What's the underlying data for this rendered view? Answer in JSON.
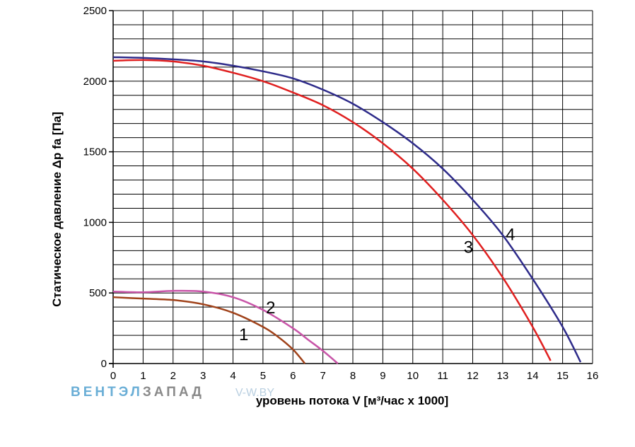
{
  "logo": {
    "part1": "ВЕНТЭЛ",
    "part2": "ЗАПАД",
    "part3": "V-W.BY"
  },
  "chart_data": {
    "type": "line",
    "xlabel": "уровень потока  V [м³/час x 1000]",
    "ylabel": "Статическое давление  Δp fa [Па]",
    "xlim": [
      0,
      16
    ],
    "ylim": [
      0,
      2500
    ],
    "x_ticks": [
      0,
      1,
      2,
      3,
      4,
      5,
      6,
      7,
      8,
      9,
      10,
      11,
      12,
      13,
      14,
      15,
      16
    ],
    "y_ticks": [
      0,
      500,
      1000,
      1500,
      2000,
      2500
    ],
    "grid": true,
    "series": [
      {
        "name": "1",
        "color": "#a0421a",
        "x": [
          0,
          1,
          2,
          3,
          4,
          5,
          5.5,
          6,
          6.4
        ],
        "y": [
          470,
          460,
          450,
          420,
          360,
          260,
          190,
          100,
          0
        ]
      },
      {
        "name": "2",
        "color": "#c855a8",
        "x": [
          0,
          1,
          2,
          3,
          4,
          5,
          6,
          6.5,
          7,
          7.5
        ],
        "y": [
          510,
          505,
          515,
          510,
          470,
          380,
          250,
          170,
          90,
          0
        ]
      },
      {
        "name": "3",
        "color": "#e02020",
        "x": [
          0,
          1,
          2,
          3,
          4,
          5,
          6,
          7,
          8,
          9,
          10,
          11,
          12,
          13,
          14,
          14.6
        ],
        "y": [
          2145,
          2150,
          2140,
          2110,
          2060,
          2000,
          1920,
          1830,
          1710,
          1560,
          1380,
          1160,
          910,
          610,
          260,
          20
        ]
      },
      {
        "name": "4",
        "color": "#2e2b8a",
        "x": [
          0,
          1,
          2,
          3,
          4,
          5,
          6,
          7,
          8,
          9,
          10,
          11,
          12,
          13,
          14,
          15,
          15.6
        ],
        "y": [
          2170,
          2165,
          2155,
          2140,
          2110,
          2070,
          2020,
          1940,
          1840,
          1710,
          1560,
          1380,
          1160,
          910,
          600,
          260,
          10
        ]
      }
    ],
    "curve_labels": [
      {
        "text": "1",
        "x": 4.2,
        "y": 210
      },
      {
        "text": "2",
        "x": 5.1,
        "y": 400
      },
      {
        "text": "3",
        "x": 11.7,
        "y": 830
      },
      {
        "text": "4",
        "x": 13.1,
        "y": 920
      }
    ]
  }
}
